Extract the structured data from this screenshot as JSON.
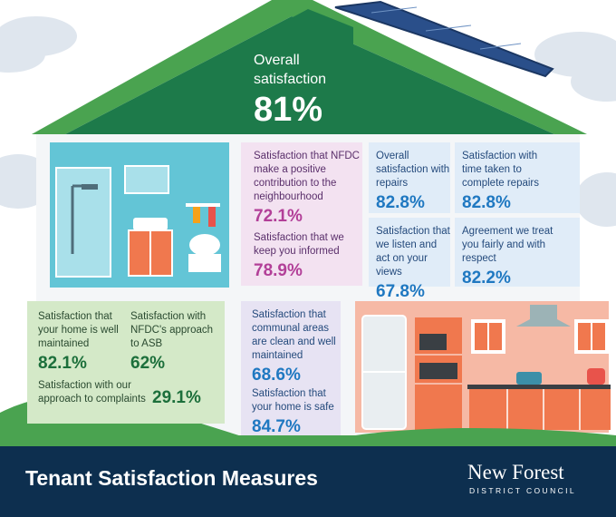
{
  "overall": {
    "label": "Overall satisfaction",
    "value": "81%"
  },
  "metrics": {
    "neighbourhood": {
      "label": "Satisfaction that NFDC make a positive contribution to the neighbourhood",
      "value": "72.1%"
    },
    "informed": {
      "label": "Satisfaction that we keep you informed",
      "value": "78.9%"
    },
    "repairs": {
      "label": "Overall satisfaction with repairs",
      "value": "82.8%"
    },
    "repair_time": {
      "label": "Satisfaction with time taken to complete repairs",
      "value": "82.8%"
    },
    "listen": {
      "label": "Satisfaction that we listen and act on your views",
      "value": "67.8%"
    },
    "respect": {
      "label": "Agreement we treat you fairly and with respect",
      "value": "82.2%"
    },
    "maintained": {
      "label": "Satisfaction that your home is well maintained",
      "value": "82.1%"
    },
    "asb": {
      "label": "Satisfaction with NFDC's approach to ASB",
      "value": "62%"
    },
    "complaints": {
      "label": "Satisfaction with our approach to complaints",
      "value": "29.1%"
    },
    "communal": {
      "label": "Satisfaction that communal areas are clean and well maintained",
      "value": "68.6%"
    },
    "safe": {
      "label": "Satisfaction that your home is safe",
      "value": "84.7%"
    }
  },
  "footer": {
    "title": "Tenant Satisfaction Measures",
    "org_name": "New Forest",
    "org_sub": "DISTRICT COUNCIL"
  },
  "colors": {
    "roof": "#1d7a4a",
    "footer": "#0d2f4f",
    "bathroom": "#63c5d6",
    "kitchen": "#f6b9a5"
  },
  "icons": [
    "bathroom-illustration",
    "kitchen-illustration",
    "cloud-icon",
    "solar-panel-icon",
    "council-logo-icon"
  ]
}
